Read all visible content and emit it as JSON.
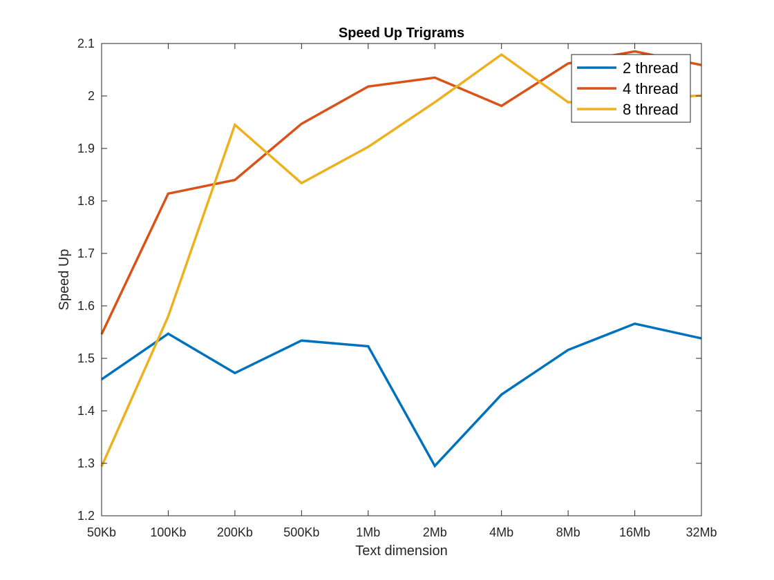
{
  "chart_data": {
    "type": "line",
    "title": "Speed Up Trigrams",
    "xlabel": "Text dimension",
    "ylabel": "Speed Up",
    "categories": [
      "50Kb",
      "100Kb",
      "200Kb",
      "500Kb",
      "1Mb",
      "2Mb",
      "4Mb",
      "8Mb",
      "16Mb",
      "32Mb"
    ],
    "ylim": [
      1.2,
      2.1
    ],
    "yticks": [
      "1.2",
      "1.3",
      "1.4",
      "1.5",
      "1.6",
      "1.7",
      "1.8",
      "1.9",
      "2",
      "2.1"
    ],
    "grid": false,
    "legend_position": "top-right",
    "series": [
      {
        "name": "2 thread",
        "color": "#0072BD",
        "values": [
          1.46,
          1.547,
          1.472,
          1.534,
          1.523,
          1.295,
          1.431,
          1.516,
          1.566,
          1.538
        ]
      },
      {
        "name": "4 thread",
        "color": "#D95319",
        "values": [
          1.546,
          1.814,
          1.84,
          1.947,
          2.018,
          2.035,
          1.981,
          2.062,
          2.085,
          2.059
        ]
      },
      {
        "name": "8 thread",
        "color": "#EDB120",
        "values": [
          1.294,
          1.58,
          1.945,
          1.834,
          1.903,
          1.988,
          2.079,
          1.988,
          1.993,
          2.001
        ]
      }
    ]
  }
}
